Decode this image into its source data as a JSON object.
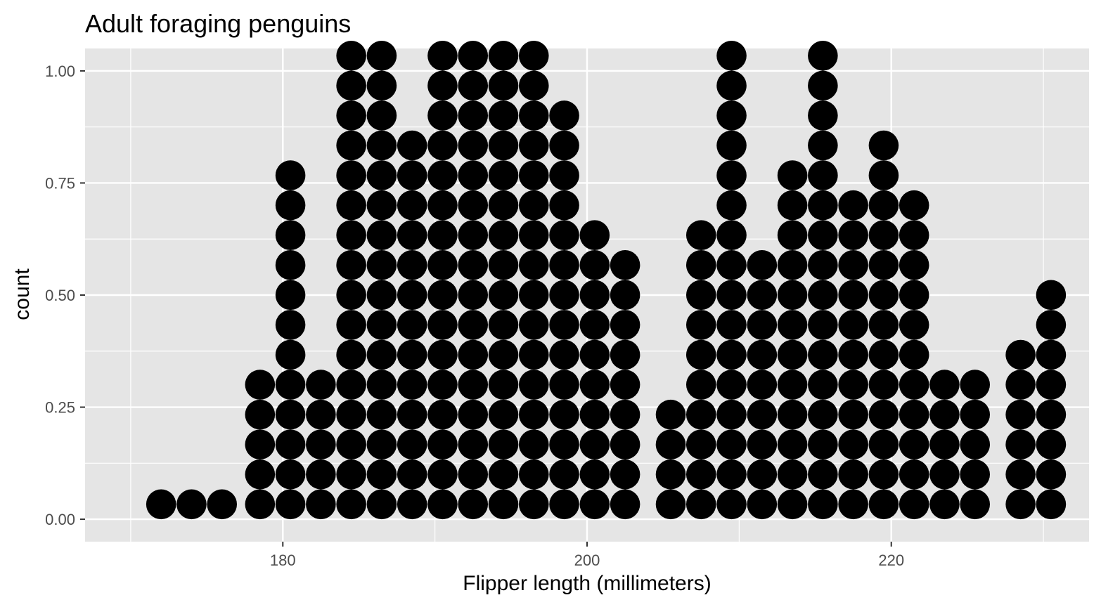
{
  "chart_data": {
    "type": "dotplot",
    "title": "Adult foraging penguins",
    "xlabel": "Flipper length (millimeters)",
    "ylabel": "count",
    "xlim": [
      167,
      233
    ],
    "ylim": [
      -0.05,
      1.05
    ],
    "x_ticks": [
      180,
      200,
      220
    ],
    "x_tick_labels": [
      "180",
      "200",
      "220"
    ],
    "x_minor_ticks": [
      170,
      190,
      210,
      230
    ],
    "y_ticks": [
      0,
      0.25,
      0.5,
      0.75,
      1.0
    ],
    "y_tick_labels": [
      "0.00",
      "0.25",
      "0.50",
      "0.75",
      "1.00"
    ],
    "grid": true,
    "colors": {
      "panel": "#e5e5e5",
      "grid": "#ffffff",
      "dot": "#000000",
      "tick": "#333333"
    },
    "stack_step": 0.0667,
    "stacks": [
      {
        "x": 172.0,
        "count": 1
      },
      {
        "x": 174.0,
        "count": 1
      },
      {
        "x": 176.0,
        "count": 1
      },
      {
        "x": 178.5,
        "count": 5
      },
      {
        "x": 180.5,
        "count": 12
      },
      {
        "x": 182.5,
        "count": 5
      },
      {
        "x": 184.5,
        "count": 16
      },
      {
        "x": 186.5,
        "count": 16
      },
      {
        "x": 188.5,
        "count": 13
      },
      {
        "x": 190.5,
        "count": 16
      },
      {
        "x": 192.5,
        "count": 16
      },
      {
        "x": 194.5,
        "count": 16
      },
      {
        "x": 196.5,
        "count": 16
      },
      {
        "x": 198.5,
        "count": 14
      },
      {
        "x": 200.5,
        "count": 10
      },
      {
        "x": 202.5,
        "count": 9
      },
      {
        "x": 205.5,
        "count": 4
      },
      {
        "x": 207.5,
        "count": 10
      },
      {
        "x": 209.5,
        "count": 16
      },
      {
        "x": 211.5,
        "count": 9
      },
      {
        "x": 213.5,
        "count": 12
      },
      {
        "x": 215.5,
        "count": 16
      },
      {
        "x": 217.5,
        "count": 11
      },
      {
        "x": 219.5,
        "count": 13
      },
      {
        "x": 221.5,
        "count": 11
      },
      {
        "x": 223.5,
        "count": 5
      },
      {
        "x": 225.5,
        "count": 5
      },
      {
        "x": 228.5,
        "count": 6
      },
      {
        "x": 230.5,
        "count": 8
      }
    ]
  }
}
